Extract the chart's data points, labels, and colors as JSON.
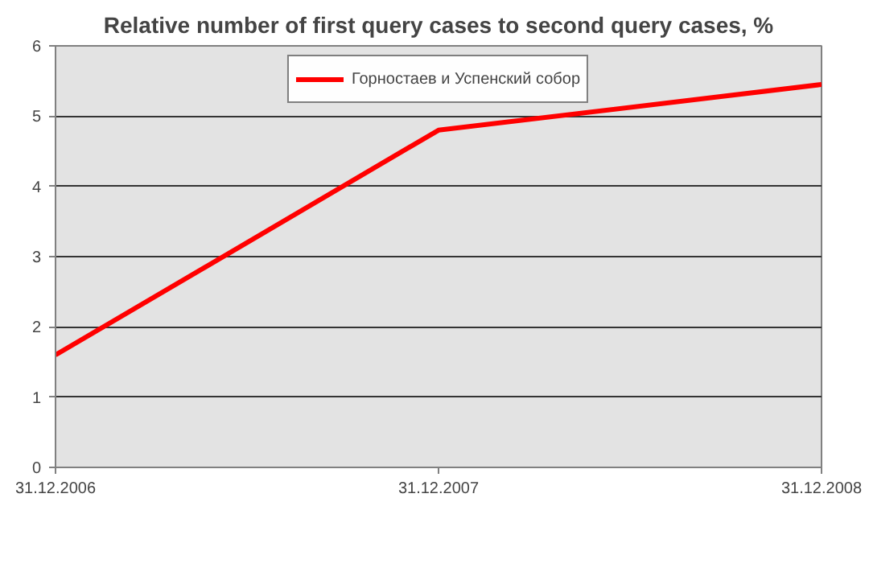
{
  "chart_data": {
    "type": "line",
    "title": "Relative number of first query cases to second query cases, %",
    "categories": [
      "31.12.2006",
      "31.12.2007",
      "31.12.2008"
    ],
    "series": [
      {
        "name": "Горностаев и Успенский собор",
        "color": "#ff0000",
        "values": [
          1.6,
          4.8,
          5.45
        ]
      }
    ],
    "ylim": [
      0,
      6
    ],
    "yticks": [
      0,
      1,
      2,
      3,
      4,
      5,
      6
    ],
    "grid": "y",
    "legend": "top",
    "marker": "none",
    "line_style": "solid"
  }
}
